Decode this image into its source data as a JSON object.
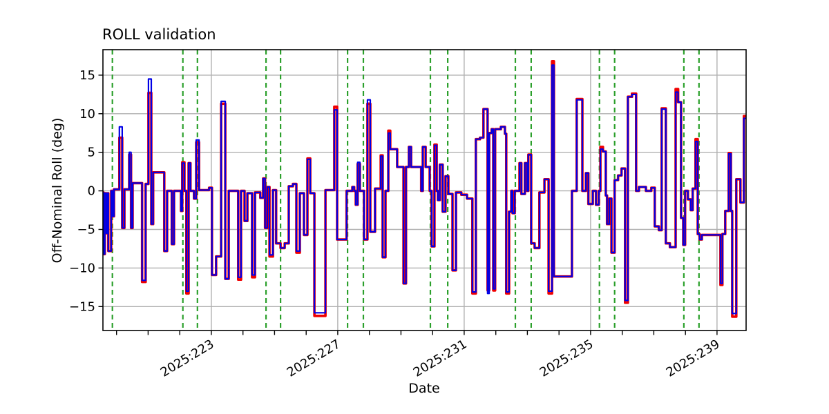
{
  "chart_data": {
    "type": "line",
    "title": "ROLL validation",
    "xlabel": "Date",
    "ylabel": "Off-Nominal Roll (deg)",
    "step": "post",
    "grid": true,
    "xlim": [
      219.57,
      239.92
    ],
    "ylim": [
      -18.1,
      18.3
    ],
    "yticks": [
      -15,
      -10,
      -5,
      0,
      5,
      10,
      15
    ],
    "ytick_labels": [
      "−15",
      "−10",
      "−5",
      "0",
      "5",
      "10",
      "15"
    ],
    "x_major_tick_days": [
      223,
      227,
      231,
      235,
      239
    ],
    "x_tick_labels": [
      "2025:223",
      "2025:227",
      "2025:231",
      "2025:235",
      "2025:239"
    ],
    "x_minor_ticks_every_day": true,
    "colors": {
      "reference": "#f00000",
      "validation": "#0000e6",
      "event_marker": "#2ca02c",
      "grid": "#b0b0b0",
      "spine": "#000000"
    },
    "event_marker_days": [
      219.87,
      222.1,
      222.56,
      224.73,
      225.19,
      227.31,
      227.81,
      229.93,
      230.48,
      232.62,
      233.12,
      235.28,
      235.76,
      237.95,
      238.43
    ],
    "series_names": [
      "reference-roll-red",
      "validation-roll-blue"
    ],
    "points_format": [
      "day_of_year_2025",
      "red_deg",
      "blue_deg"
    ],
    "points": [
      [
        219.57,
        -0.2,
        -0.2
      ],
      [
        219.59,
        -8.2,
        -8.2
      ],
      [
        219.63,
        -0.3,
        -0.3
      ],
      [
        219.68,
        -5.5,
        -5.5
      ],
      [
        219.72,
        -0.3,
        -0.3
      ],
      [
        219.74,
        -7.8,
        -7.8
      ],
      [
        219.83,
        0.0,
        0.0
      ],
      [
        219.87,
        -3.3,
        -3.3
      ],
      [
        219.92,
        0.2,
        0.2
      ],
      [
        220.09,
        6.9,
        8.3
      ],
      [
        220.18,
        -4.8,
        -4.8
      ],
      [
        220.25,
        0.2,
        0.2
      ],
      [
        220.4,
        4.7,
        5.0
      ],
      [
        220.46,
        -4.8,
        -4.8
      ],
      [
        220.51,
        1.0,
        1.0
      ],
      [
        220.81,
        -11.8,
        -11.6
      ],
      [
        220.92,
        0.9,
        0.9
      ],
      [
        221.01,
        12.7,
        14.5
      ],
      [
        221.1,
        -4.3,
        -4.3
      ],
      [
        221.16,
        2.4,
        2.4
      ],
      [
        221.51,
        -7.8,
        -7.8
      ],
      [
        221.6,
        0.0,
        0.0
      ],
      [
        221.75,
        -6.9,
        -6.9
      ],
      [
        221.82,
        0.0,
        0.0
      ],
      [
        222.04,
        -2.6,
        -2.6
      ],
      [
        222.08,
        3.7,
        3.6
      ],
      [
        222.15,
        0.0,
        0.0
      ],
      [
        222.21,
        -13.3,
        -13.0
      ],
      [
        222.28,
        3.6,
        3.6
      ],
      [
        222.34,
        0.0,
        0.0
      ],
      [
        222.45,
        -1.0,
        -1.0
      ],
      [
        222.52,
        6.3,
        6.6
      ],
      [
        222.61,
        0.1,
        0.1
      ],
      [
        222.93,
        0.4,
        0.4
      ],
      [
        223.02,
        -10.9,
        -10.9
      ],
      [
        223.15,
        -8.5,
        -8.5
      ],
      [
        223.31,
        11.3,
        11.6
      ],
      [
        223.44,
        -11.4,
        -11.4
      ],
      [
        223.55,
        0.0,
        0.0
      ],
      [
        223.85,
        -11.5,
        -11.2
      ],
      [
        223.94,
        0.0,
        0.0
      ],
      [
        224.05,
        -3.9,
        -3.9
      ],
      [
        224.14,
        -0.3,
        -0.3
      ],
      [
        224.29,
        -11.2,
        -10.9
      ],
      [
        224.38,
        -0.2,
        -0.2
      ],
      [
        224.55,
        -0.9,
        -0.9
      ],
      [
        224.64,
        1.6,
        1.6
      ],
      [
        224.7,
        -4.8,
        -4.8
      ],
      [
        224.77,
        0.5,
        0.5
      ],
      [
        224.84,
        -8.5,
        -8.3
      ],
      [
        224.95,
        0.1,
        0.1
      ],
      [
        225.05,
        -6.8,
        -6.8
      ],
      [
        225.19,
        -7.4,
        -7.4
      ],
      [
        225.32,
        -6.8,
        -6.8
      ],
      [
        225.45,
        0.6,
        0.6
      ],
      [
        225.58,
        0.9,
        0.9
      ],
      [
        225.69,
        -8.0,
        -7.8
      ],
      [
        225.8,
        -0.3,
        -0.3
      ],
      [
        225.93,
        -5.7,
        -5.7
      ],
      [
        226.04,
        4.2,
        4.1
      ],
      [
        226.13,
        -0.3,
        -0.3
      ],
      [
        226.26,
        -16.2,
        -15.8
      ],
      [
        226.61,
        0.1,
        0.1
      ],
      [
        226.89,
        10.9,
        10.5
      ],
      [
        226.98,
        -6.3,
        -6.3
      ],
      [
        227.28,
        0.0,
        0.0
      ],
      [
        227.46,
        0.5,
        0.5
      ],
      [
        227.52,
        0.0,
        0.0
      ],
      [
        227.57,
        -1.8,
        -1.8
      ],
      [
        227.63,
        3.5,
        3.7
      ],
      [
        227.7,
        0.0,
        0.0
      ],
      [
        227.83,
        -6.3,
        -6.3
      ],
      [
        227.94,
        11.3,
        11.8
      ],
      [
        228.03,
        -5.3,
        -5.3
      ],
      [
        228.18,
        0.3,
        0.3
      ],
      [
        228.36,
        4.6,
        4.5
      ],
      [
        228.42,
        -8.6,
        -8.6
      ],
      [
        228.51,
        0.0,
        0.0
      ],
      [
        228.6,
        7.8,
        7.5
      ],
      [
        228.66,
        5.4,
        5.4
      ],
      [
        228.88,
        3.1,
        3.1
      ],
      [
        229.08,
        -12.0,
        -12.0
      ],
      [
        229.16,
        3.1,
        3.1
      ],
      [
        229.25,
        5.7,
        5.7
      ],
      [
        229.32,
        3.1,
        3.1
      ],
      [
        229.64,
        0.0,
        0.0
      ],
      [
        229.69,
        5.7,
        5.7
      ],
      [
        229.78,
        3.1,
        3.1
      ],
      [
        229.91,
        0.0,
        0.0
      ],
      [
        229.97,
        -7.2,
        -7.2
      ],
      [
        230.06,
        6.0,
        5.9
      ],
      [
        230.13,
        0.0,
        0.0
      ],
      [
        230.17,
        -1.2,
        -1.2
      ],
      [
        230.23,
        3.4,
        3.4
      ],
      [
        230.32,
        -2.7,
        -2.7
      ],
      [
        230.41,
        1.9,
        1.9
      ],
      [
        230.5,
        -0.4,
        -0.4
      ],
      [
        230.63,
        -10.3,
        -10.3
      ],
      [
        230.74,
        -0.2,
        -0.2
      ],
      [
        230.91,
        -0.5,
        -0.5
      ],
      [
        231.09,
        -1.0,
        -1.0
      ],
      [
        231.26,
        -13.3,
        -13.1
      ],
      [
        231.37,
        6.7,
        6.7
      ],
      [
        231.5,
        6.9,
        6.9
      ],
      [
        231.61,
        10.6,
        10.6
      ],
      [
        231.74,
        -12.9,
        -13.3
      ],
      [
        231.79,
        7.5,
        7.5
      ],
      [
        231.87,
        8.0,
        8.0
      ],
      [
        231.92,
        -12.9,
        -12.7
      ],
      [
        231.98,
        8.0,
        8.0
      ],
      [
        232.16,
        8.3,
        8.3
      ],
      [
        232.29,
        7.4,
        7.4
      ],
      [
        232.33,
        -13.3,
        -13.1
      ],
      [
        232.42,
        -2.7,
        -2.7
      ],
      [
        232.49,
        0.0,
        0.0
      ],
      [
        232.53,
        -2.9,
        -2.9
      ],
      [
        232.6,
        0.0,
        0.0
      ],
      [
        232.75,
        3.6,
        3.6
      ],
      [
        232.81,
        -0.4,
        -0.4
      ],
      [
        232.92,
        3.6,
        3.6
      ],
      [
        232.99,
        0.0,
        0.0
      ],
      [
        233.03,
        4.7,
        4.7
      ],
      [
        233.12,
        -6.8,
        -6.8
      ],
      [
        233.23,
        -7.4,
        -7.4
      ],
      [
        233.38,
        -0.2,
        -0.2
      ],
      [
        233.54,
        1.5,
        1.5
      ],
      [
        233.67,
        -13.3,
        -13.0
      ],
      [
        233.78,
        16.8,
        16.3
      ],
      [
        233.84,
        -11.1,
        -11.1
      ],
      [
        234.41,
        0.0,
        0.0
      ],
      [
        234.56,
        11.9,
        11.8
      ],
      [
        234.74,
        0.0,
        0.0
      ],
      [
        234.85,
        2.3,
        2.3
      ],
      [
        234.93,
        -1.7,
        -1.7
      ],
      [
        235.07,
        0.0,
        0.0
      ],
      [
        235.17,
        -1.8,
        -1.8
      ],
      [
        235.26,
        0.0,
        0.0
      ],
      [
        235.31,
        5.7,
        5.4
      ],
      [
        235.39,
        5.1,
        5.1
      ],
      [
        235.48,
        -0.6,
        -0.6
      ],
      [
        235.52,
        -4.3,
        -4.3
      ],
      [
        235.59,
        -1.0,
        -1.0
      ],
      [
        235.66,
        -8.0,
        -8.0
      ],
      [
        235.76,
        1.4,
        1.4
      ],
      [
        235.87,
        2.0,
        2.0
      ],
      [
        235.98,
        2.9,
        2.9
      ],
      [
        236.09,
        -14.5,
        -14.2
      ],
      [
        236.18,
        12.2,
        12.2
      ],
      [
        236.31,
        12.6,
        12.5
      ],
      [
        236.44,
        0.0,
        0.0
      ],
      [
        236.53,
        0.5,
        0.5
      ],
      [
        236.75,
        0.0,
        0.0
      ],
      [
        236.92,
        0.4,
        0.4
      ],
      [
        237.03,
        -4.6,
        -4.6
      ],
      [
        237.16,
        -5.1,
        -5.1
      ],
      [
        237.25,
        10.7,
        10.6
      ],
      [
        237.38,
        -6.8,
        -6.8
      ],
      [
        237.51,
        -7.3,
        -7.3
      ],
      [
        237.69,
        13.2,
        12.8
      ],
      [
        237.77,
        11.5,
        11.5
      ],
      [
        237.86,
        -3.5,
        -3.5
      ],
      [
        237.93,
        -7.0,
        -7.0
      ],
      [
        237.99,
        0.0,
        0.0
      ],
      [
        238.08,
        -1.1,
        -1.1
      ],
      [
        238.17,
        -2.5,
        -2.5
      ],
      [
        238.23,
        0.3,
        0.3
      ],
      [
        238.32,
        6.7,
        6.4
      ],
      [
        238.39,
        -5.6,
        -5.6
      ],
      [
        238.45,
        -6.3,
        -6.3
      ],
      [
        238.52,
        -5.7,
        -5.7
      ],
      [
        239.11,
        -12.2,
        -12.0
      ],
      [
        239.17,
        -5.6,
        -5.6
      ],
      [
        239.26,
        -2.6,
        -2.6
      ],
      [
        239.37,
        4.9,
        4.8
      ],
      [
        239.44,
        -2.6,
        -2.6
      ],
      [
        239.48,
        -16.3,
        -15.9
      ],
      [
        239.61,
        1.5,
        1.5
      ],
      [
        239.74,
        -1.5,
        -1.5
      ],
      [
        239.85,
        9.7,
        9.4
      ],
      [
        239.92,
        9.7,
        9.4
      ]
    ]
  }
}
